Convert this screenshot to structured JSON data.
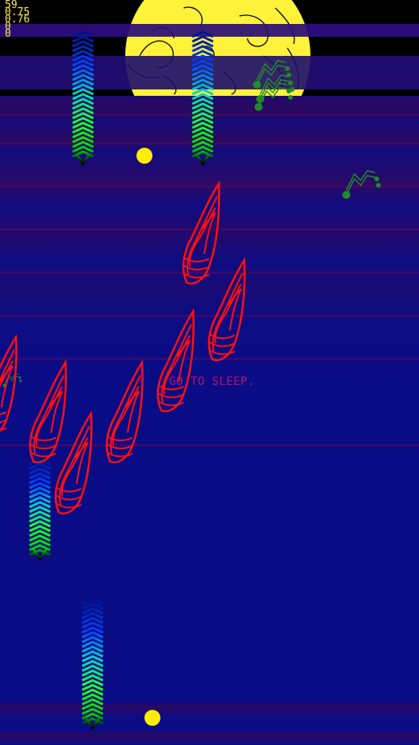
{
  "hud": {
    "lines": [
      "59",
      "0.75",
      "0.76",
      "0",
      "0"
    ]
  },
  "message": "GO TO SLEEP.",
  "colors": {
    "sky_top": "#000000",
    "sky_band": "#2a0d7a",
    "field": "#0a0c86",
    "moon": "#fff23a",
    "moon_outline": "#000000",
    "flame": "#ff1010",
    "note": "#1f8a2a",
    "orb": "#ffee00",
    "hud_text": "#ffe94a",
    "message_text": "#c1106a"
  },
  "icons": [
    "moon-icon",
    "music-note-icon",
    "flame-sprite",
    "spiky-worm-sprite",
    "orb-icon"
  ]
}
